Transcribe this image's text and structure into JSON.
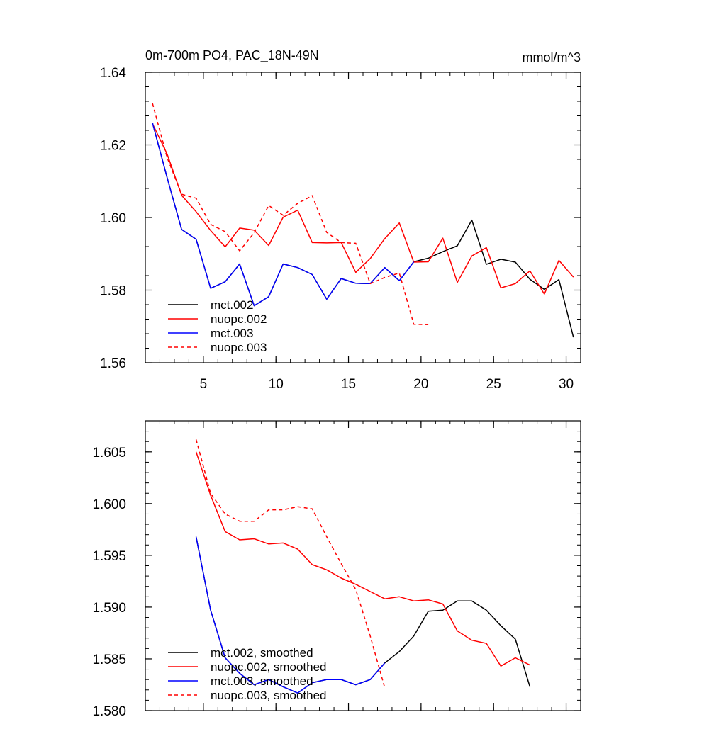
{
  "chart_data": [
    {
      "type": "line",
      "title": "0m-700m PO4, PAC_18N-49N",
      "units": "mmol/m^3",
      "xlabel": "",
      "ylabel": "",
      "xlim": [
        1,
        31
      ],
      "ylim": [
        1.56,
        1.64
      ],
      "xticks": [
        5,
        10,
        15,
        20,
        25,
        30
      ],
      "xtick_labels": [
        "5",
        "10",
        "15",
        "20",
        "25",
        "30"
      ],
      "yticks": [
        1.56,
        1.58,
        1.6,
        1.62,
        1.64
      ],
      "ytick_labels": [
        "1.56",
        "1.58",
        "1.60",
        "1.62",
        "1.64"
      ],
      "legend_position": "lower-left",
      "series": [
        {
          "name": "mct.002",
          "color": "#000000",
          "dash": "solid",
          "x": [
            1.5,
            2.5,
            3.5,
            4.5,
            5.5,
            6.5,
            7.5,
            8.5,
            9.5,
            10.5,
            11.5,
            12.5,
            13.5,
            14.5,
            15.5,
            16.5,
            17.5,
            18.5,
            19.5,
            20.5,
            21.5,
            22.5,
            23.5,
            24.5,
            25.5,
            26.5,
            27.5,
            28.5,
            29.5,
            30.5
          ],
          "y": [
            1.626,
            1.611,
            1.5967,
            1.594,
            1.5805,
            1.5823,
            1.5872,
            1.5757,
            1.5782,
            1.5872,
            1.5862,
            1.5843,
            1.5775,
            1.5832,
            1.5819,
            1.5818,
            1.5862,
            1.5826,
            1.5878,
            1.5888,
            1.5906,
            1.5922,
            1.5993,
            1.5871,
            1.5885,
            1.5877,
            1.583,
            1.5802,
            1.5829,
            1.567
          ]
        },
        {
          "name": "nuopc.002",
          "color": "#ff0000",
          "dash": "solid",
          "x": [
            1.5,
            2.5,
            3.5,
            4.5,
            5.5,
            6.5,
            7.5,
            8.5,
            9.5,
            10.5,
            11.5,
            12.5,
            13.5,
            14.5,
            15.5,
            16.5,
            17.5,
            18.5,
            19.5,
            20.5,
            21.5,
            22.5,
            23.5,
            24.5,
            25.5,
            26.5,
            27.5,
            28.5,
            29.5,
            30.5
          ],
          "y": [
            1.6258,
            1.6175,
            1.6061,
            1.6016,
            1.5964,
            1.5919,
            1.5971,
            1.5965,
            1.5923,
            1.6001,
            1.602,
            1.5931,
            1.593,
            1.5931,
            1.5849,
            1.5887,
            1.5942,
            1.5985,
            1.5877,
            1.5878,
            1.5943,
            1.5821,
            1.5894,
            1.5917,
            1.5806,
            1.5818,
            1.5853,
            1.5789,
            1.5882,
            1.5836
          ]
        },
        {
          "name": "mct.003",
          "color": "#0000ff",
          "dash": "solid",
          "x": [
            1.5,
            2.5,
            3.5,
            4.5,
            5.5,
            6.5,
            7.5,
            8.5,
            9.5,
            10.5,
            11.5,
            12.5,
            13.5,
            14.5,
            15.5,
            16.5,
            17.5,
            18.5,
            19.5
          ],
          "y": [
            1.626,
            1.611,
            1.5967,
            1.594,
            1.5805,
            1.5823,
            1.5872,
            1.5757,
            1.5782,
            1.5872,
            1.5862,
            1.5843,
            1.5775,
            1.5832,
            1.5819,
            1.5818,
            1.5862,
            1.5826,
            1.5878
          ]
        },
        {
          "name": "nuopc.003",
          "color": "#ff0000",
          "dash": "dashed",
          "x": [
            1.5,
            2.5,
            3.5,
            4.5,
            5.5,
            6.5,
            7.5,
            8.5,
            9.5,
            10.5,
            11.5,
            12.5,
            13.5,
            14.5,
            15.5,
            16.5,
            17.5,
            18.5,
            19.5,
            20.5
          ],
          "y": [
            1.6314,
            1.6165,
            1.6064,
            1.6053,
            1.5981,
            1.5961,
            1.5908,
            1.5958,
            1.6033,
            1.6006,
            1.6039,
            1.606,
            1.5959,
            1.5931,
            1.5929,
            1.5818,
            1.5835,
            1.5847,
            1.5706,
            1.5705
          ]
        }
      ]
    },
    {
      "type": "line",
      "title": "",
      "xlabel": "",
      "ylabel": "",
      "xlim": [
        1,
        31
      ],
      "ylim": [
        1.58,
        1.608
      ],
      "xticks": [
        5,
        10,
        15,
        20,
        25,
        30
      ],
      "xtick_labels": [],
      "yticks": [
        1.58,
        1.585,
        1.59,
        1.595,
        1.6,
        1.605
      ],
      "ytick_labels": [
        "1.580",
        "1.585",
        "1.590",
        "1.595",
        "1.600",
        "1.605"
      ],
      "legend_position": "lower-left",
      "series": [
        {
          "name": "mct.002, smoothed",
          "color": "#000000",
          "dash": "solid",
          "x": [
            4.5,
            5.5,
            6.5,
            7.5,
            8.5,
            9.5,
            10.5,
            11.5,
            12.5,
            13.5,
            14.5,
            15.5,
            16.5,
            17.5,
            18.5,
            19.5,
            20.5,
            21.5,
            22.5,
            23.5,
            24.5,
            25.5,
            26.5,
            27.5
          ],
          "y": [
            1.5968,
            1.5897,
            1.5851,
            1.5836,
            1.5825,
            1.583,
            1.5823,
            1.5817,
            1.5827,
            1.583,
            1.583,
            1.5825,
            1.583,
            1.5846,
            1.5857,
            1.5872,
            1.5896,
            1.5897,
            1.5906,
            1.5906,
            1.5897,
            1.5882,
            1.5869,
            1.5823
          ]
        },
        {
          "name": "nuopc.002, smoothed",
          "color": "#ff0000",
          "dash": "solid",
          "x": [
            4.5,
            5.5,
            6.5,
            7.5,
            8.5,
            9.5,
            10.5,
            11.5,
            12.5,
            13.5,
            14.5,
            15.5,
            16.5,
            17.5,
            18.5,
            19.5,
            20.5,
            21.5,
            22.5,
            23.5,
            24.5,
            25.5,
            26.5,
            27.5
          ],
          "y": [
            1.605,
            1.6008,
            1.5973,
            1.5965,
            1.5966,
            1.5961,
            1.5962,
            1.5956,
            1.5941,
            1.5936,
            1.5928,
            1.5922,
            1.5915,
            1.5908,
            1.591,
            1.5906,
            1.5907,
            1.5903,
            1.5877,
            1.5868,
            1.5865,
            1.5843,
            1.5851,
            1.5844
          ]
        },
        {
          "name": "mct.003, smoothed",
          "color": "#0000ff",
          "dash": "solid",
          "x": [
            4.5,
            5.5,
            6.5,
            7.5,
            8.5,
            9.5,
            10.5,
            11.5,
            12.5,
            13.5,
            14.5,
            15.5,
            16.5,
            17.5
          ],
          "y": [
            1.5968,
            1.5897,
            1.5851,
            1.5836,
            1.5825,
            1.583,
            1.5823,
            1.5817,
            1.5827,
            1.583,
            1.583,
            1.5825,
            1.583,
            1.5846
          ]
        },
        {
          "name": "nuopc.003, smoothed",
          "color": "#ff0000",
          "dash": "dashed",
          "x": [
            4.5,
            5.5,
            6.5,
            7.5,
            8.5,
            9.5,
            10.5,
            11.5,
            12.5,
            13.5,
            14.5,
            15.5,
            16.5,
            17.5
          ],
          "y": [
            1.6062,
            1.601,
            1.599,
            1.5983,
            1.5983,
            1.5994,
            1.5994,
            1.5997,
            1.5995,
            1.5968,
            1.5942,
            1.5917,
            1.5872,
            1.5822
          ]
        }
      ]
    }
  ]
}
